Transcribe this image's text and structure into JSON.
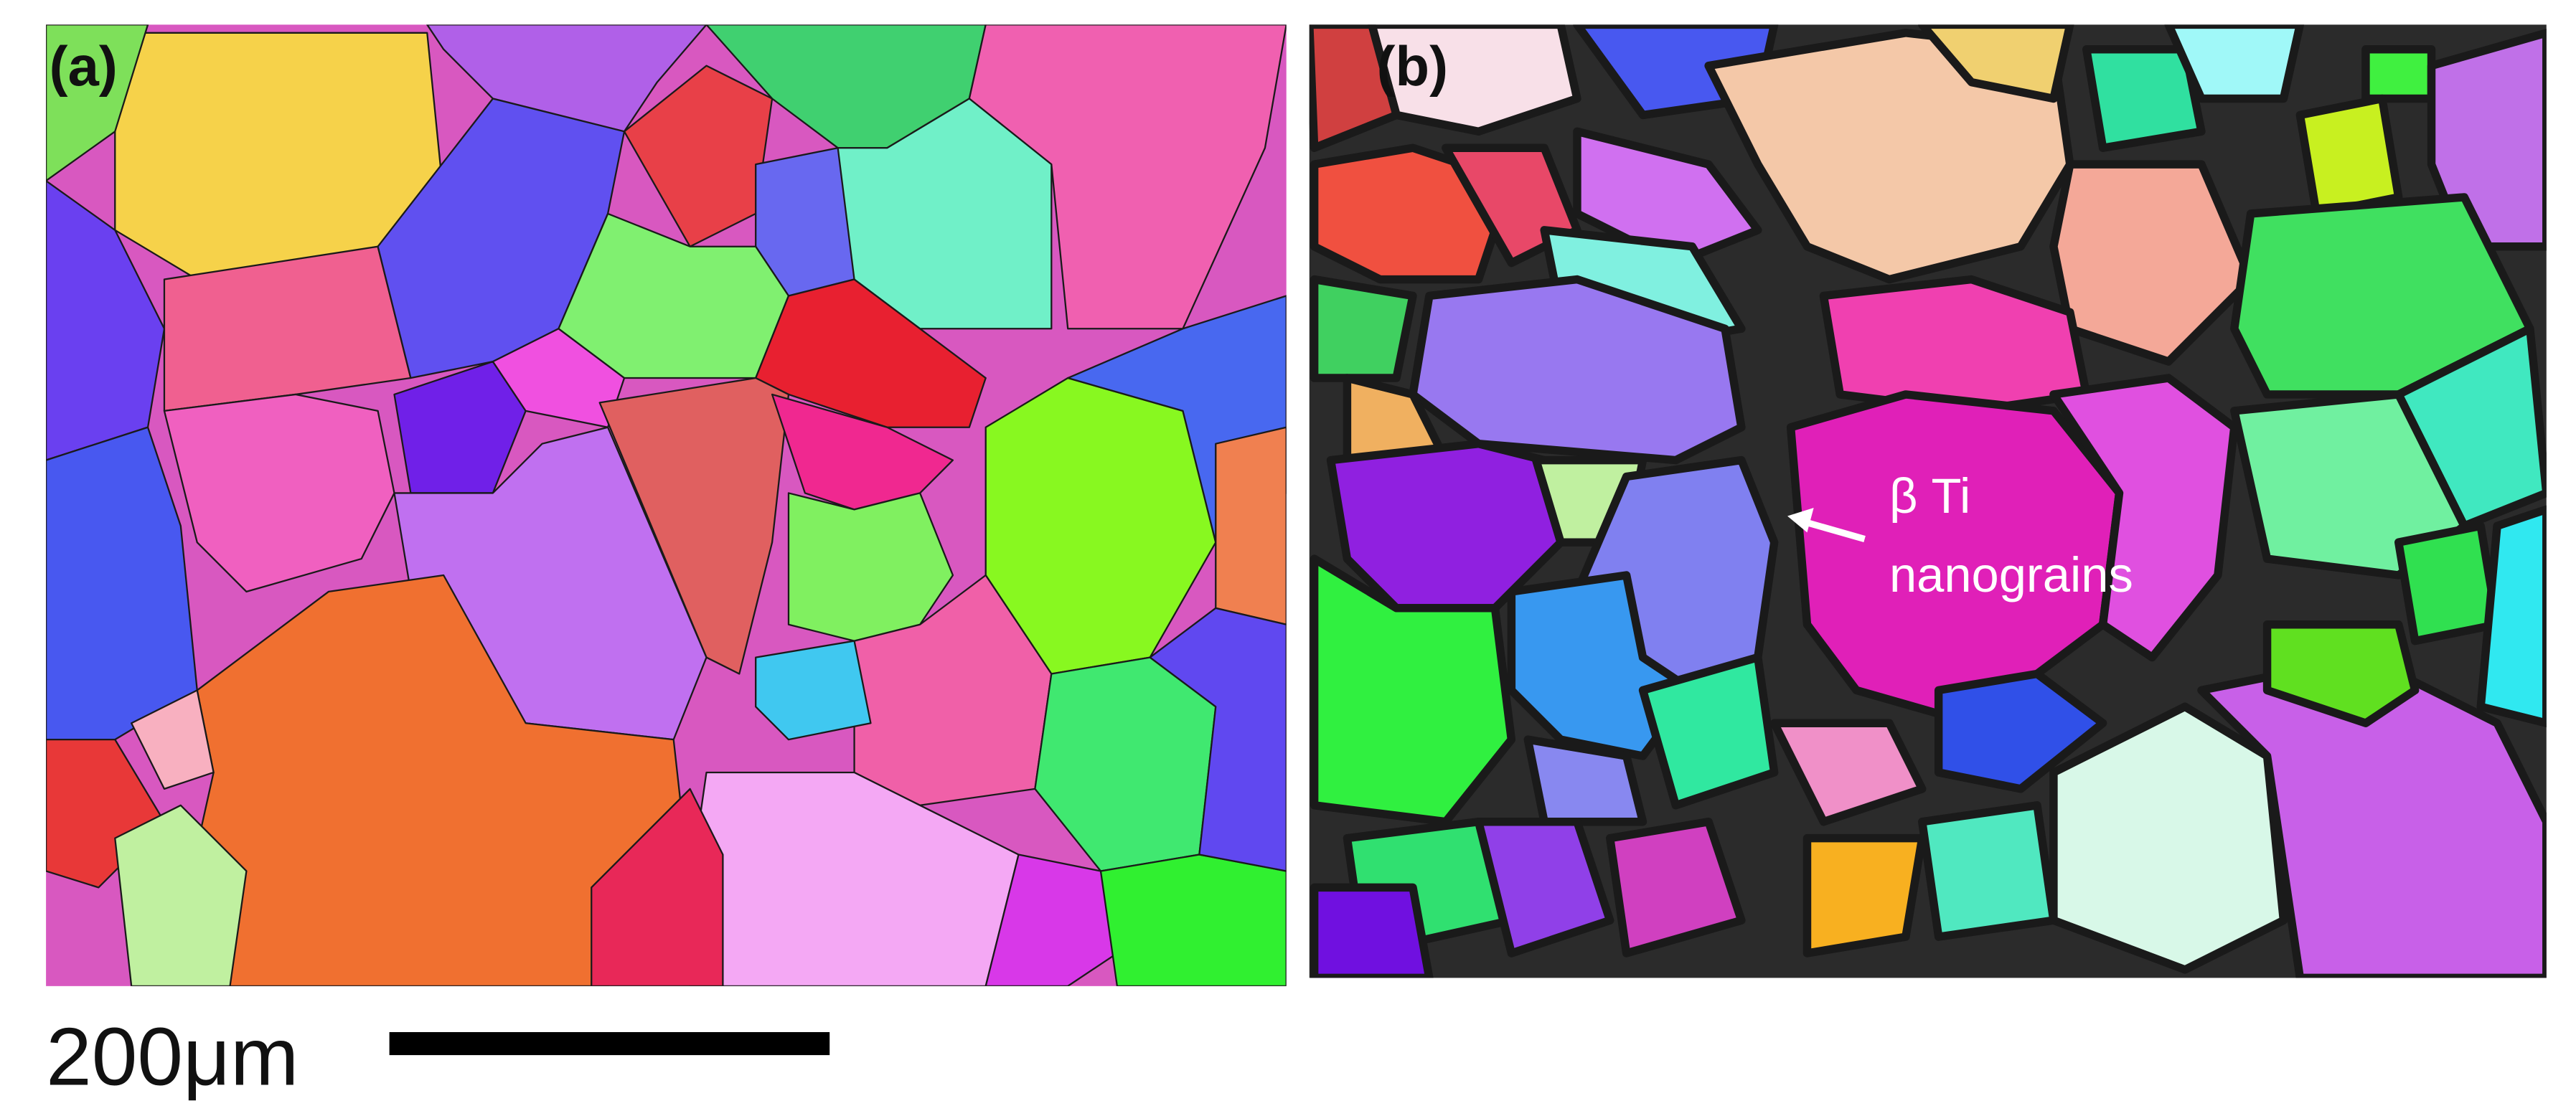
{
  "panels": [
    {
      "label": "(a)"
    },
    {
      "label": "(b)",
      "annotation": [
        "β Ti",
        "nanograins"
      ]
    }
  ],
  "scale_bar": {
    "label": "200μm"
  }
}
